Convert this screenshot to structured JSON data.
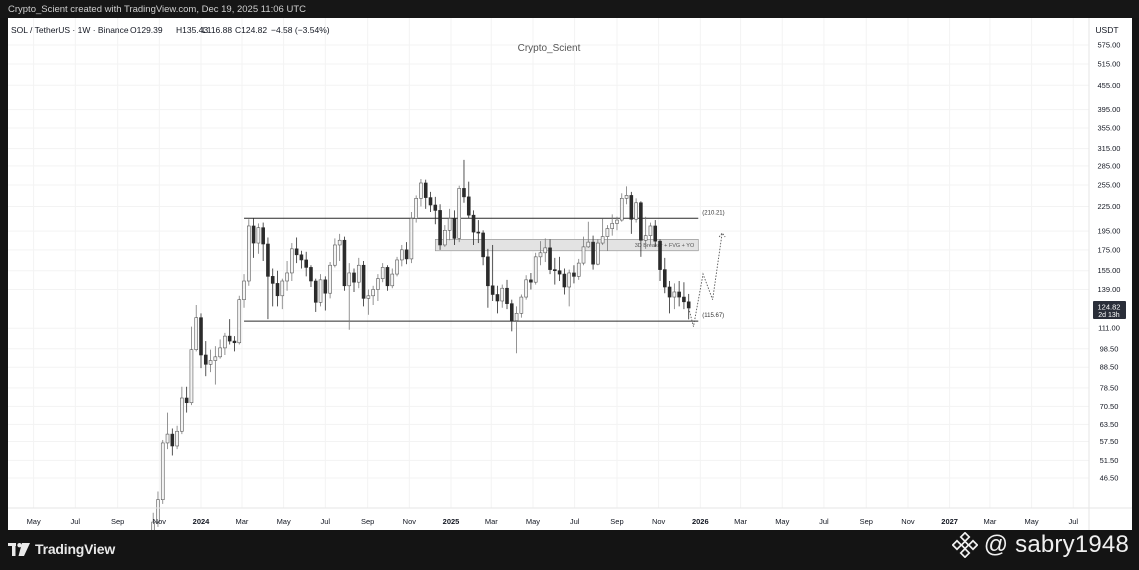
{
  "credit": "Crypto_Scient created with TradingView.com, Dec 19, 2025 11:06 UTC",
  "chart_data": {
    "type": "candlestick",
    "symbol_line": "SOL / TetherUS · 1W · Binance",
    "ohlc": {
      "o_label": "O129.39",
      "h_label": "H135.43",
      "l_label": "L116.88",
      "c_label": "C124.82",
      "change_label": "−4.58 (−3.54%)"
    },
    "watermark_center": "Crypto_Scient",
    "currency": "USDT",
    "y_scale": "log",
    "y_ticks": [
      "575.00",
      "515.00",
      "455.00",
      "395.00",
      "355.00",
      "315.00",
      "285.00",
      "255.00",
      "225.00",
      "195.00",
      "175.00",
      "155.00",
      "139.00",
      "124.82",
      "111.00",
      "98.50",
      "88.50",
      "78.50",
      "70.50",
      "63.50",
      "57.50",
      "51.50",
      "46.50"
    ],
    "y_tick_values": [
      575,
      515,
      455,
      395,
      355,
      315,
      285,
      255,
      225,
      195,
      175,
      155,
      139,
      124.82,
      111,
      98.5,
      88.5,
      78.5,
      70.5,
      63.5,
      57.5,
      51.5,
      46.5
    ],
    "x_ticks": [
      {
        "label": "May",
        "date": "2023-05-01",
        "bold": false
      },
      {
        "label": "Jul",
        "date": "2023-07-01",
        "bold": false
      },
      {
        "label": "Sep",
        "date": "2023-09-01",
        "bold": false
      },
      {
        "label": "Nov",
        "date": "2023-11-01",
        "bold": false
      },
      {
        "label": "2024",
        "date": "2024-01-01",
        "bold": true
      },
      {
        "label": "Mar",
        "date": "2024-03-01",
        "bold": false
      },
      {
        "label": "May",
        "date": "2024-05-01",
        "bold": false
      },
      {
        "label": "Jul",
        "date": "2024-07-01",
        "bold": false
      },
      {
        "label": "Sep",
        "date": "2024-09-01",
        "bold": false
      },
      {
        "label": "Nov",
        "date": "2024-11-01",
        "bold": false
      },
      {
        "label": "2025",
        "date": "2025-01-01",
        "bold": true
      },
      {
        "label": "Mar",
        "date": "2025-03-01",
        "bold": false
      },
      {
        "label": "May",
        "date": "2025-05-01",
        "bold": false
      },
      {
        "label": "Jul",
        "date": "2025-07-01",
        "bold": false
      },
      {
        "label": "Sep",
        "date": "2025-09-01",
        "bold": false
      },
      {
        "label": "Nov",
        "date": "2025-11-01",
        "bold": false
      },
      {
        "label": "2026",
        "date": "2026-01-01",
        "bold": true
      },
      {
        "label": "Mar",
        "date": "2026-03-01",
        "bold": false
      },
      {
        "label": "May",
        "date": "2026-05-01",
        "bold": false
      },
      {
        "label": "Jul",
        "date": "2026-07-01",
        "bold": false
      },
      {
        "label": "Sep",
        "date": "2026-09-01",
        "bold": false
      },
      {
        "label": "Nov",
        "date": "2026-11-01",
        "bold": false
      },
      {
        "label": "2027",
        "date": "2027-01-01",
        "bold": true
      },
      {
        "label": "Mar",
        "date": "2027-03-01",
        "bold": false
      },
      {
        "label": "May",
        "date": "2027-05-01",
        "bold": false
      },
      {
        "label": "Jul",
        "date": "2027-07-01",
        "bold": false
      }
    ],
    "price_box": {
      "price": "124.82",
      "countdown": "2d 13h"
    },
    "levels": [
      {
        "label": "(210.21)",
        "price": 210.21,
        "from": "2024-03-04",
        "to": "2025-12-29"
      },
      {
        "label": "(115.67)",
        "price": 115.67,
        "from": "2024-03-04",
        "to": "2025-12-29"
      }
    ],
    "zone": {
      "label": "3D Breaker + FVG + YO",
      "top": 186,
      "bottom": 174,
      "from": "2024-12-09",
      "to": "2025-12-29"
    },
    "projection": [
      {
        "date": "2025-12-15",
        "price": 124.82
      },
      {
        "date": "2025-12-22",
        "price": 112
      },
      {
        "date": "2026-01-05",
        "price": 152
      },
      {
        "date": "2026-01-19",
        "price": 131
      },
      {
        "date": "2026-02-02",
        "price": 193
      }
    ],
    "candles": [
      {
        "date": "2023-10-23",
        "o": 32,
        "h": 38,
        "l": 31,
        "c": 36
      },
      {
        "date": "2023-10-30",
        "o": 36,
        "h": 43,
        "l": 35,
        "c": 41
      },
      {
        "date": "2023-11-06",
        "o": 41,
        "h": 58,
        "l": 40,
        "c": 57
      },
      {
        "date": "2023-11-13",
        "o": 57,
        "h": 68,
        "l": 55,
        "c": 60
      },
      {
        "date": "2023-11-20",
        "o": 60,
        "h": 62,
        "l": 53,
        "c": 56
      },
      {
        "date": "2023-11-27",
        "o": 56,
        "h": 63,
        "l": 55,
        "c": 61
      },
      {
        "date": "2023-12-04",
        "o": 61,
        "h": 79,
        "l": 60,
        "c": 74
      },
      {
        "date": "2023-12-11",
        "o": 74,
        "h": 79,
        "l": 68,
        "c": 72
      },
      {
        "date": "2023-12-18",
        "o": 72,
        "h": 112,
        "l": 71,
        "c": 98
      },
      {
        "date": "2023-12-25",
        "o": 98,
        "h": 127,
        "l": 97,
        "c": 118
      },
      {
        "date": "2024-01-01",
        "o": 118,
        "h": 121,
        "l": 88,
        "c": 95
      },
      {
        "date": "2024-01-08",
        "o": 95,
        "h": 103,
        "l": 84,
        "c": 90
      },
      {
        "date": "2024-01-15",
        "o": 90,
        "h": 98,
        "l": 86,
        "c": 92
      },
      {
        "date": "2024-01-22",
        "o": 92,
        "h": 100,
        "l": 80,
        "c": 94
      },
      {
        "date": "2024-01-29",
        "o": 94,
        "h": 104,
        "l": 93,
        "c": 99
      },
      {
        "date": "2024-02-05",
        "o": 99,
        "h": 108,
        "l": 95,
        "c": 106
      },
      {
        "date": "2024-02-12",
        "o": 106,
        "h": 117,
        "l": 101,
        "c": 103
      },
      {
        "date": "2024-02-19",
        "o": 103,
        "h": 106,
        "l": 97,
        "c": 102
      },
      {
        "date": "2024-02-26",
        "o": 102,
        "h": 134,
        "l": 101,
        "c": 131
      },
      {
        "date": "2024-03-04",
        "o": 131,
        "h": 152,
        "l": 125,
        "c": 146
      },
      {
        "date": "2024-03-11",
        "o": 146,
        "h": 209,
        "l": 142,
        "c": 201
      },
      {
        "date": "2024-03-18",
        "o": 201,
        "h": 210,
        "l": 167,
        "c": 182
      },
      {
        "date": "2024-03-25",
        "o": 182,
        "h": 204,
        "l": 171,
        "c": 199
      },
      {
        "date": "2024-04-01",
        "o": 199,
        "h": 205,
        "l": 164,
        "c": 181
      },
      {
        "date": "2024-04-08",
        "o": 181,
        "h": 188,
        "l": 117,
        "c": 150
      },
      {
        "date": "2024-04-15",
        "o": 150,
        "h": 157,
        "l": 126,
        "c": 144
      },
      {
        "date": "2024-04-22",
        "o": 144,
        "h": 155,
        "l": 126,
        "c": 134
      },
      {
        "date": "2024-04-29",
        "o": 134,
        "h": 148,
        "l": 124,
        "c": 146
      },
      {
        "date": "2024-05-06",
        "o": 146,
        "h": 164,
        "l": 138,
        "c": 153
      },
      {
        "date": "2024-05-13",
        "o": 153,
        "h": 182,
        "l": 146,
        "c": 176
      },
      {
        "date": "2024-05-20",
        "o": 176,
        "h": 188,
        "l": 162,
        "c": 170
      },
      {
        "date": "2024-05-27",
        "o": 170,
        "h": 174,
        "l": 157,
        "c": 165
      },
      {
        "date": "2024-06-03",
        "o": 165,
        "h": 173,
        "l": 150,
        "c": 158
      },
      {
        "date": "2024-06-10",
        "o": 158,
        "h": 160,
        "l": 141,
        "c": 146
      },
      {
        "date": "2024-06-17",
        "o": 146,
        "h": 148,
        "l": 122,
        "c": 129
      },
      {
        "date": "2024-06-24",
        "o": 129,
        "h": 152,
        "l": 126,
        "c": 147
      },
      {
        "date": "2024-07-01",
        "o": 147,
        "h": 150,
        "l": 123,
        "c": 136
      },
      {
        "date": "2024-07-08",
        "o": 136,
        "h": 163,
        "l": 132,
        "c": 160
      },
      {
        "date": "2024-07-15",
        "o": 160,
        "h": 187,
        "l": 158,
        "c": 180
      },
      {
        "date": "2024-07-22",
        "o": 180,
        "h": 192,
        "l": 164,
        "c": 185
      },
      {
        "date": "2024-07-29",
        "o": 185,
        "h": 189,
        "l": 138,
        "c": 142
      },
      {
        "date": "2024-08-05",
        "o": 142,
        "h": 162,
        "l": 110,
        "c": 153
      },
      {
        "date": "2024-08-12",
        "o": 153,
        "h": 157,
        "l": 137,
        "c": 145
      },
      {
        "date": "2024-08-19",
        "o": 145,
        "h": 167,
        "l": 140,
        "c": 160
      },
      {
        "date": "2024-08-26",
        "o": 160,
        "h": 164,
        "l": 126,
        "c": 132
      },
      {
        "date": "2024-09-02",
        "o": 132,
        "h": 139,
        "l": 120,
        "c": 134
      },
      {
        "date": "2024-09-09",
        "o": 134,
        "h": 142,
        "l": 127,
        "c": 139
      },
      {
        "date": "2024-09-16",
        "o": 139,
        "h": 152,
        "l": 130,
        "c": 148
      },
      {
        "date": "2024-09-23",
        "o": 148,
        "h": 162,
        "l": 145,
        "c": 158
      },
      {
        "date": "2024-09-30",
        "o": 158,
        "h": 160,
        "l": 138,
        "c": 142
      },
      {
        "date": "2024-10-07",
        "o": 142,
        "h": 157,
        "l": 140,
        "c": 152
      },
      {
        "date": "2024-10-14",
        "o": 152,
        "h": 168,
        "l": 150,
        "c": 165
      },
      {
        "date": "2024-10-21",
        "o": 165,
        "h": 180,
        "l": 159,
        "c": 175
      },
      {
        "date": "2024-10-28",
        "o": 175,
        "h": 183,
        "l": 161,
        "c": 166
      },
      {
        "date": "2024-11-04",
        "o": 166,
        "h": 218,
        "l": 162,
        "c": 210
      },
      {
        "date": "2024-11-11",
        "o": 210,
        "h": 240,
        "l": 205,
        "c": 236
      },
      {
        "date": "2024-11-18",
        "o": 236,
        "h": 264,
        "l": 225,
        "c": 258
      },
      {
        "date": "2024-11-25",
        "o": 258,
        "h": 263,
        "l": 222,
        "c": 237
      },
      {
        "date": "2024-12-02",
        "o": 237,
        "h": 245,
        "l": 218,
        "c": 227
      },
      {
        "date": "2024-12-09",
        "o": 227,
        "h": 238,
        "l": 203,
        "c": 220
      },
      {
        "date": "2024-12-16",
        "o": 220,
        "h": 228,
        "l": 175,
        "c": 180
      },
      {
        "date": "2024-12-23",
        "o": 180,
        "h": 202,
        "l": 178,
        "c": 196
      },
      {
        "date": "2024-12-30",
        "o": 196,
        "h": 222,
        "l": 185,
        "c": 210
      },
      {
        "date": "2025-01-06",
        "o": 210,
        "h": 220,
        "l": 180,
        "c": 187
      },
      {
        "date": "2025-01-13",
        "o": 187,
        "h": 254,
        "l": 183,
        "c": 250
      },
      {
        "date": "2025-01-20",
        "o": 250,
        "h": 295,
        "l": 230,
        "c": 238
      },
      {
        "date": "2025-01-27",
        "o": 238,
        "h": 260,
        "l": 210,
        "c": 214
      },
      {
        "date": "2025-02-03",
        "o": 214,
        "h": 220,
        "l": 180,
        "c": 194
      },
      {
        "date": "2025-02-10",
        "o": 194,
        "h": 208,
        "l": 182,
        "c": 193
      },
      {
        "date": "2025-02-17",
        "o": 193,
        "h": 196,
        "l": 160,
        "c": 168
      },
      {
        "date": "2025-02-24",
        "o": 168,
        "h": 176,
        "l": 125,
        "c": 142
      },
      {
        "date": "2025-03-03",
        "o": 142,
        "h": 180,
        "l": 130,
        "c": 135
      },
      {
        "date": "2025-03-10",
        "o": 135,
        "h": 142,
        "l": 121,
        "c": 130
      },
      {
        "date": "2025-03-17",
        "o": 130,
        "h": 143,
        "l": 125,
        "c": 140
      },
      {
        "date": "2025-03-24",
        "o": 140,
        "h": 147,
        "l": 124,
        "c": 128
      },
      {
        "date": "2025-03-31",
        "o": 128,
        "h": 131,
        "l": 109,
        "c": 116
      },
      {
        "date": "2025-04-07",
        "o": 116,
        "h": 126,
        "l": 96,
        "c": 121
      },
      {
        "date": "2025-04-14",
        "o": 121,
        "h": 135,
        "l": 118,
        "c": 133
      },
      {
        "date": "2025-04-21",
        "o": 133,
        "h": 151,
        "l": 131,
        "c": 147
      },
      {
        "date": "2025-04-28",
        "o": 147,
        "h": 153,
        "l": 139,
        "c": 145
      },
      {
        "date": "2025-05-05",
        "o": 145,
        "h": 172,
        "l": 143,
        "c": 168
      },
      {
        "date": "2025-05-12",
        "o": 168,
        "h": 184,
        "l": 160,
        "c": 172
      },
      {
        "date": "2025-05-19",
        "o": 172,
        "h": 187,
        "l": 163,
        "c": 177
      },
      {
        "date": "2025-05-26",
        "o": 177,
        "h": 186,
        "l": 152,
        "c": 156
      },
      {
        "date": "2025-06-02",
        "o": 156,
        "h": 167,
        "l": 143,
        "c": 155
      },
      {
        "date": "2025-06-09",
        "o": 155,
        "h": 168,
        "l": 146,
        "c": 152
      },
      {
        "date": "2025-06-16",
        "o": 152,
        "h": 157,
        "l": 135,
        "c": 141
      },
      {
        "date": "2025-06-23",
        "o": 141,
        "h": 156,
        "l": 126,
        "c": 153
      },
      {
        "date": "2025-06-30",
        "o": 153,
        "h": 160,
        "l": 144,
        "c": 150
      },
      {
        "date": "2025-07-07",
        "o": 150,
        "h": 166,
        "l": 147,
        "c": 162
      },
      {
        "date": "2025-07-14",
        "o": 162,
        "h": 189,
        "l": 160,
        "c": 178
      },
      {
        "date": "2025-07-21",
        "o": 178,
        "h": 206,
        "l": 177,
        "c": 183
      },
      {
        "date": "2025-07-28",
        "o": 183,
        "h": 190,
        "l": 156,
        "c": 161
      },
      {
        "date": "2025-08-04",
        "o": 161,
        "h": 186,
        "l": 160,
        "c": 182
      },
      {
        "date": "2025-08-11",
        "o": 182,
        "h": 210,
        "l": 180,
        "c": 189
      },
      {
        "date": "2025-08-18",
        "o": 189,
        "h": 202,
        "l": 174,
        "c": 198
      },
      {
        "date": "2025-08-25",
        "o": 198,
        "h": 215,
        "l": 190,
        "c": 204
      },
      {
        "date": "2025-09-01",
        "o": 204,
        "h": 212,
        "l": 196,
        "c": 208
      },
      {
        "date": "2025-09-08",
        "o": 208,
        "h": 243,
        "l": 206,
        "c": 236
      },
      {
        "date": "2025-09-15",
        "o": 236,
        "h": 253,
        "l": 228,
        "c": 240
      },
      {
        "date": "2025-09-22",
        "o": 240,
        "h": 245,
        "l": 192,
        "c": 209
      },
      {
        "date": "2025-09-29",
        "o": 209,
        "h": 236,
        "l": 205,
        "c": 230
      },
      {
        "date": "2025-10-06",
        "o": 230,
        "h": 232,
        "l": 168,
        "c": 185
      },
      {
        "date": "2025-10-13",
        "o": 185,
        "h": 212,
        "l": 176,
        "c": 190
      },
      {
        "date": "2025-10-20",
        "o": 190,
        "h": 205,
        "l": 180,
        "c": 201
      },
      {
        "date": "2025-10-27",
        "o": 201,
        "h": 208,
        "l": 178,
        "c": 184
      },
      {
        "date": "2025-11-03",
        "o": 184,
        "h": 186,
        "l": 146,
        "c": 156
      },
      {
        "date": "2025-11-10",
        "o": 156,
        "h": 167,
        "l": 136,
        "c": 141
      },
      {
        "date": "2025-11-17",
        "o": 141,
        "h": 146,
        "l": 121,
        "c": 133
      },
      {
        "date": "2025-11-24",
        "o": 133,
        "h": 144,
        "l": 124,
        "c": 137
      },
      {
        "date": "2025-12-01",
        "o": 137,
        "h": 146,
        "l": 126,
        "c": 133
      },
      {
        "date": "2025-12-08",
        "o": 133,
        "h": 145,
        "l": 124,
        "c": 129.39
      },
      {
        "date": "2025-12-15",
        "o": 129.39,
        "h": 135.43,
        "l": 116.88,
        "c": 124.82
      }
    ]
  },
  "branding": {
    "tv_logo_text": "TradingView",
    "watermark_user": "@ sabry1948"
  }
}
